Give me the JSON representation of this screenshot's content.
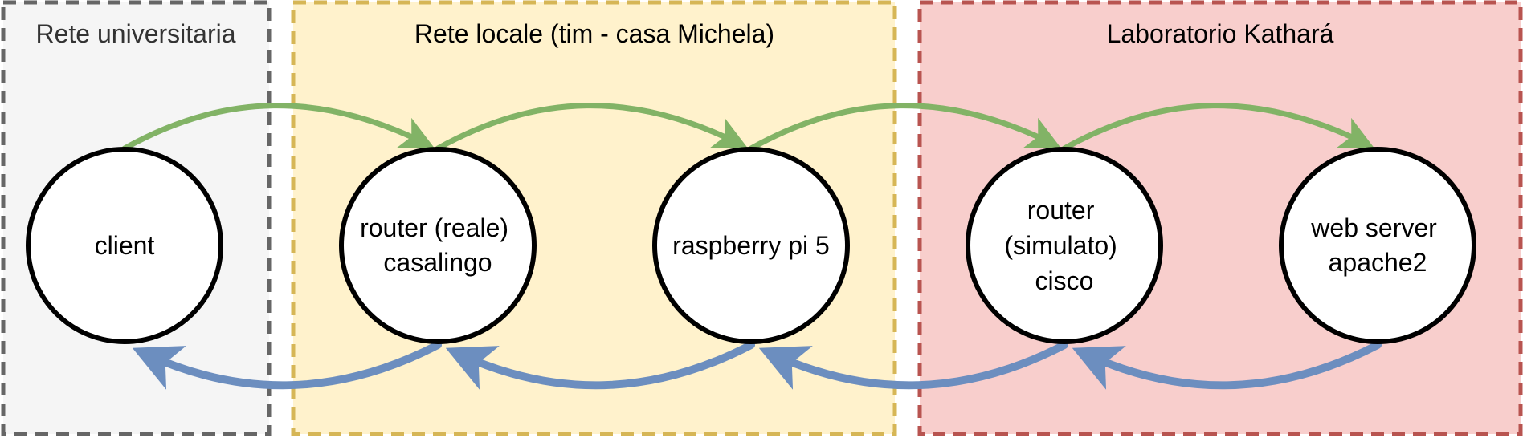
{
  "zones": {
    "university": {
      "label": "Rete universitaria",
      "fill": "#f5f5f5",
      "stroke": "#666666",
      "text_color": "#333333"
    },
    "local": {
      "label": "Rete locale (tim - casa Michela)",
      "fill": "#fff2cc",
      "stroke": "#d6b656",
      "text_color": "#000000"
    },
    "lab": {
      "label": "Laboratorio Kathará",
      "fill": "#f8cecc",
      "stroke": "#b85450",
      "text_color": "#000000"
    }
  },
  "nodes": {
    "client": {
      "lines": [
        "client"
      ]
    },
    "home_router": {
      "lines": [
        "router (reale)",
        "casalingo"
      ]
    },
    "raspberry": {
      "lines": [
        "raspberry pi 5"
      ]
    },
    "cisco_router": {
      "lines": [
        "router",
        "(simulato)",
        "cisco"
      ]
    },
    "web_server": {
      "lines": [
        "web server",
        "apache2"
      ]
    }
  },
  "colors": {
    "request_arrow": "#82b366",
    "response_arrow": "#6c8ebf",
    "node_stroke": "#000000",
    "node_fill": "#ffffff"
  }
}
